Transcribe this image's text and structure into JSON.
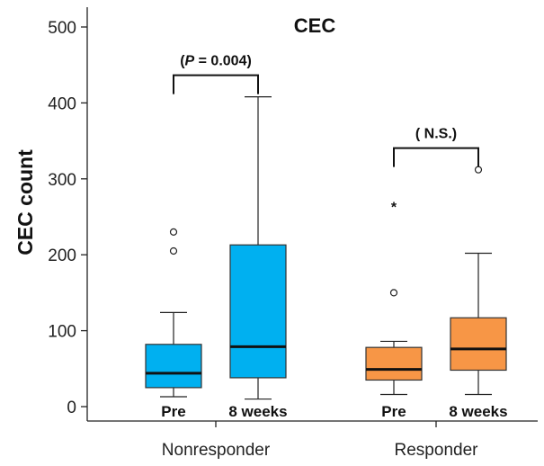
{
  "chart_data": {
    "type": "boxplot",
    "title": "CEC",
    "xlabel": "",
    "ylabel": "CEC count",
    "ylim": [
      0,
      500
    ],
    "yticks": [
      0,
      100,
      200,
      300,
      400,
      500
    ],
    "grid": false,
    "groups": [
      {
        "name": "Nonresponder",
        "color": "#00b0f0",
        "boxes": [
          {
            "label": "Pre",
            "whisker_low": 13,
            "q1": 25,
            "median": 44,
            "q3": 82,
            "whisker_high": 124,
            "outliers": [
              205,
              230
            ],
            "extremes": []
          },
          {
            "label": "8 weeks",
            "whisker_low": 10,
            "q1": 38,
            "median": 79,
            "q3": 213,
            "whisker_high": 408,
            "outliers": [],
            "extremes": []
          }
        ],
        "annotation": {
          "label_prefix": "(",
          "label_italic": "P",
          "label_rest": " = 0.004)"
        }
      },
      {
        "name": "Responder",
        "color": "#f79646",
        "boxes": [
          {
            "label": "Pre",
            "whisker_low": 16,
            "q1": 35,
            "median": 49,
            "q3": 78,
            "whisker_high": 86,
            "outliers": [
              150
            ],
            "extremes": [
              267
            ]
          },
          {
            "label": "8 weeks",
            "whisker_low": 16,
            "q1": 48,
            "median": 76,
            "q3": 117,
            "whisker_high": 202,
            "outliers": [
              312
            ],
            "extremes": []
          }
        ],
        "annotation": {
          "label_prefix": "( N.S.)",
          "label_italic": "",
          "label_rest": ""
        }
      }
    ]
  }
}
